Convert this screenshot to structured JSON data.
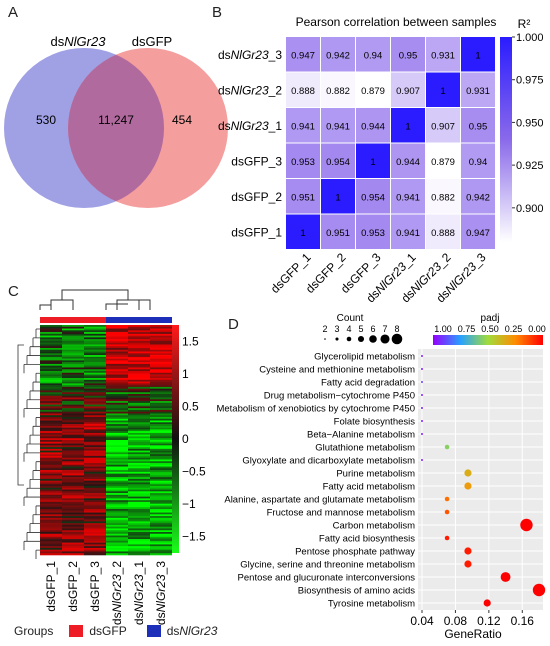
{
  "panels": {
    "a": "A",
    "b": "B",
    "c": "C",
    "d": "D"
  },
  "venn": {
    "left_prefix": "ds",
    "left_italic": "NlGr23",
    "right_label": "dsGFP",
    "left_only": "530",
    "overlap": "11,247",
    "right_only": "454",
    "colors": {
      "left": "#8f8fe0",
      "right": "#f28d8d",
      "overlap": "#b06a9e"
    }
  },
  "heatmap_b": {
    "title": "Pearson correlation between samples",
    "legend_title": "R²",
    "legend_ticks": [
      "1.000",
      "0.975",
      "0.950",
      "0.925",
      "0.900"
    ],
    "row_labels": [
      {
        "pre": "ds",
        "it": "NlGr23",
        "post": "_3"
      },
      {
        "pre": "ds",
        "it": "NlGr23",
        "post": "_2"
      },
      {
        "pre": "ds",
        "it": "NlGr23",
        "post": "_1"
      },
      {
        "pre": "dsGFP_3",
        "it": "",
        "post": ""
      },
      {
        "pre": "dsGFP_2",
        "it": "",
        "post": ""
      },
      {
        "pre": "dsGFP_1",
        "it": "",
        "post": ""
      }
    ],
    "col_labels": [
      {
        "pre": "dsGFP_1",
        "it": "",
        "post": ""
      },
      {
        "pre": "dsGFP_2",
        "it": "",
        "post": ""
      },
      {
        "pre": "dsGFP_3",
        "it": "",
        "post": ""
      },
      {
        "pre": "ds",
        "it": "NlGr23",
        "post": "_1"
      },
      {
        "pre": "ds",
        "it": "NlGr23",
        "post": "_2"
      },
      {
        "pre": "ds",
        "it": "NlGr23",
        "post": "_3"
      }
    ],
    "values": [
      [
        "0.947",
        "0.942",
        "0.94",
        "0.95",
        "0.931",
        "1"
      ],
      [
        "0.888",
        "0.882",
        "0.879",
        "0.907",
        "1",
        "0.931"
      ],
      [
        "0.941",
        "0.941",
        "0.944",
        "1",
        "0.907",
        "0.95"
      ],
      [
        "0.953",
        "0.954",
        "1",
        "0.944",
        "0.879",
        "0.94"
      ],
      [
        "0.951",
        "1",
        "0.954",
        "0.941",
        "0.882",
        "0.942"
      ],
      [
        "1",
        "0.951",
        "0.953",
        "0.941",
        "0.888",
        "0.947"
      ]
    ]
  },
  "heatmap_c": {
    "scale_ticks": [
      "1.5",
      "1",
      "0.5",
      "0",
      "−0.5",
      "−1",
      "−1.5"
    ],
    "col_labels": [
      {
        "pre": "dsGFP_1",
        "it": "",
        "post": ""
      },
      {
        "pre": "dsGFP_2",
        "it": "",
        "post": ""
      },
      {
        "pre": "dsGFP_3",
        "it": "",
        "post": ""
      },
      {
        "pre": "ds",
        "it": "NlGr23",
        "post": "_2"
      },
      {
        "pre": "ds",
        "it": "NlGr23",
        "post": "_1"
      },
      {
        "pre": "ds",
        "it": "NlGr23",
        "post": "_3"
      }
    ]
  },
  "groups_legend": {
    "title": "Groups",
    "items": [
      {
        "label_pre": "dsGFP",
        "label_it": "",
        "color": "#ee1c25"
      },
      {
        "label_pre": "ds",
        "label_it": "NlGr23",
        "color": "#1d2fb8"
      }
    ]
  },
  "chart_data": {
    "type": "scatter",
    "title": "",
    "xlabel": "GeneRatio",
    "ylabel": "",
    "xlim": [
      0.04,
      0.18
    ],
    "x_ticks": [
      "0.04",
      "0.08",
      "0.12",
      "0.16"
    ],
    "size_legend_title": "Count",
    "size_legend": [
      "2",
      "3",
      "4",
      "5",
      "6",
      "7",
      "8"
    ],
    "color_legend_title": "padj",
    "color_legend": [
      "1.00",
      "0.75",
      "0.50",
      "0.25",
      "0.00"
    ],
    "categories": [
      "Glycerolipid metabolism",
      "Cysteine and methionine metabolism",
      "Fatty acid degradation",
      "Drug metabolism−cytochrome P450",
      "Metabolism of xenobiotics by cytochrome P450",
      "Folate biosynthesis",
      "Beta−Alanine metabolism",
      "Glutathione metabolism",
      "Glyoxylate and dicarboxylate metabolism",
      "Purine metabolism",
      "Fatty acid metabolism",
      "Alanine, aspartate and glutamate metabolism",
      "Fructose and mannose metabolism",
      "Carbon metabolism",
      "Fatty acid biosynthesis",
      "Pentose phosphate pathway",
      "Glycine, serine and threonine metabolism",
      "Pentose and glucuronate interconversions",
      "Biosynthesis of amino acids",
      "Tyrosine metabolism"
    ],
    "x": [
      0.04,
      0.04,
      0.04,
      0.04,
      0.04,
      0.04,
      0.04,
      0.07,
      0.04,
      0.095,
      0.095,
      0.07,
      0.07,
      0.165,
      0.07,
      0.095,
      0.095,
      0.14,
      0.18,
      0.118
    ],
    "count": [
      1,
      1,
      1,
      1,
      1,
      1,
      1,
      2,
      1,
      3,
      3,
      2,
      2,
      5,
      2,
      3,
      3,
      4,
      5,
      3
    ],
    "padj": [
      0.95,
      0.95,
      0.9,
      0.95,
      0.95,
      0.95,
      0.95,
      0.55,
      0.95,
      0.35,
      0.3,
      0.2,
      0.15,
      0.0,
      0.05,
      0.05,
      0.05,
      0.0,
      0.0,
      0.0
    ]
  }
}
